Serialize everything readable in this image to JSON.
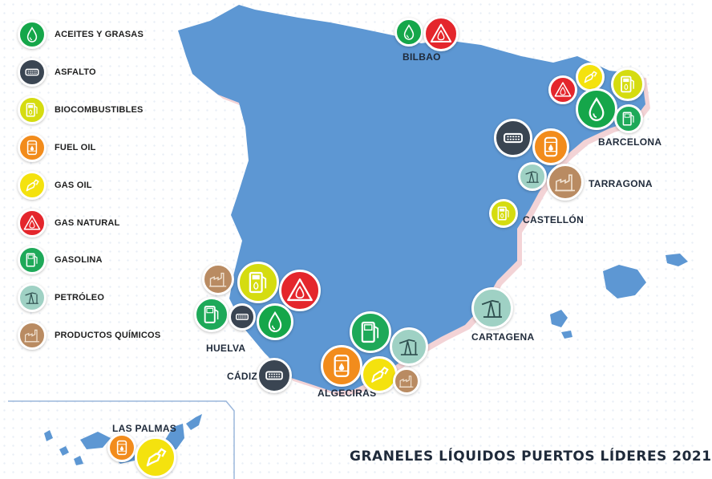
{
  "title": "GRANELES LÍQUIDOS PUERTOS LÍDERES 2021",
  "colors": {
    "land": "#5d97d3",
    "aceites_y_grasas": "#15a64a",
    "asfalto": "#3a4552",
    "biocombustibles": "#d5dc10",
    "fuel_oil": "#f28c1c",
    "gas_oil": "#f4e20e",
    "gas_natural": "#e4262c",
    "gasolina": "#1ea959",
    "petroleo": "#9fd1c4",
    "productos_quimicos": "#b98b62"
  },
  "legend": [
    {
      "key": "aceites",
      "label": "ACEITES Y GRASAS",
      "icon": "oil-drop-icon"
    },
    {
      "key": "asfalto",
      "label": "ASFALTO",
      "icon": "asphalt-icon"
    },
    {
      "key": "bio",
      "label": "BIOCOMBUSTIBLES",
      "icon": "biofuel-pump-icon"
    },
    {
      "key": "fuel",
      "label": "FUEL OIL",
      "icon": "barrel-icon"
    },
    {
      "key": "gasoil",
      "label": "GAS OIL",
      "icon": "fuel-nozzle-icon"
    },
    {
      "key": "gasnat",
      "label": "GAS NATURAL",
      "icon": "flame-warning-icon"
    },
    {
      "key": "gasolina",
      "label": "GASOLINA",
      "icon": "fuel-pump-icon"
    },
    {
      "key": "petroleo",
      "label": "PETRÓLEO",
      "icon": "oil-pumpjack-icon"
    },
    {
      "key": "quim",
      "label": "PRODUCTOS QUÍMICOS",
      "icon": "chemical-plant-icon"
    }
  ],
  "ports": [
    {
      "name": "BILBAO",
      "products": [
        "aceites",
        "gasnat"
      ]
    },
    {
      "name": "BARCELONA",
      "products": [
        "gasnat",
        "gasoil",
        "bio",
        "aceites",
        "gasolina"
      ]
    },
    {
      "name": "TARRAGONA",
      "products": [
        "asfalto",
        "fuel",
        "petroleo",
        "quim"
      ]
    },
    {
      "name": "CASTELLÓN",
      "products": [
        "bio"
      ]
    },
    {
      "name": "CARTAGENA",
      "products": [
        "petroleo"
      ]
    },
    {
      "name": "HUELVA",
      "products": [
        "quim",
        "bio",
        "gasnat",
        "gasolina",
        "asfalto",
        "aceites"
      ]
    },
    {
      "name": "CÁDIZ",
      "products": [
        "asfalto"
      ]
    },
    {
      "name": "ALGECIRAS",
      "products": [
        "gasolina",
        "petroleo",
        "fuel",
        "gasoil",
        "quim"
      ]
    },
    {
      "name": "LAS PALMAS",
      "products": [
        "fuel",
        "gasoil"
      ]
    }
  ]
}
